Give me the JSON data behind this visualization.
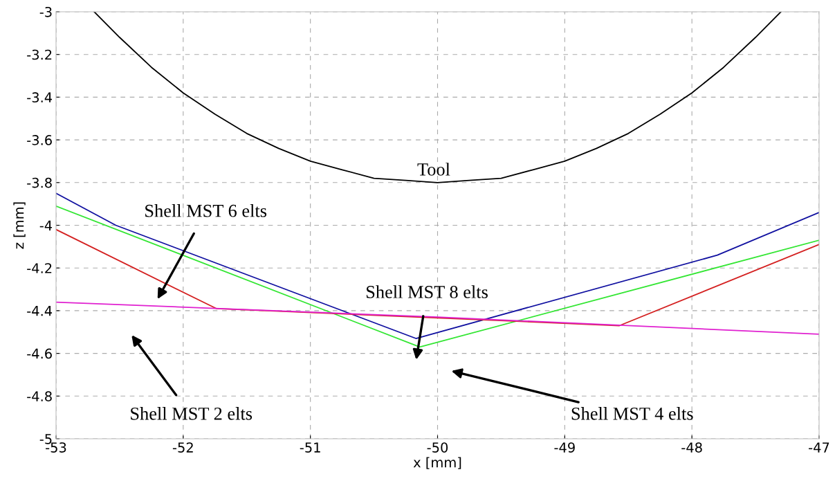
{
  "chart_data": {
    "type": "line",
    "xlabel": "x [mm]",
    "ylabel": "z [mm]",
    "xlim": [
      -53,
      -47
    ],
    "xticks": [
      -53,
      -52,
      -51,
      -50,
      -49,
      -48,
      -47
    ],
    "ylim": [
      -5,
      -3
    ],
    "yticks": [
      -5,
      -4.8,
      -4.6,
      -4.4,
      -4.2,
      -4,
      -3.8,
      -3.6,
      -3.4,
      -3.2,
      -3
    ],
    "grid": true,
    "marker": "none",
    "line_style": "solid",
    "series": [
      {
        "color": "#000000",
        "x": [
          -52.7,
          -52.5,
          -52.25,
          -52,
          -51.75,
          -51.5,
          -51.25,
          -51,
          -50.75,
          -50.5,
          -50.25,
          -50,
          -49.75,
          -49.5,
          -49.25,
          -49,
          -48.75,
          -48.5,
          -48.25,
          -48,
          -47.75,
          -47.5,
          -47.3
        ],
        "values": [
          -3.0,
          -3.12,
          -3.26,
          -3.38,
          -3.48,
          -3.57,
          -3.64,
          -3.7,
          -3.74,
          -3.78,
          -3.79,
          -3.8,
          -3.79,
          -3.78,
          -3.74,
          -3.7,
          -3.64,
          -3.57,
          -3.48,
          -3.38,
          -3.26,
          -3.12,
          -3.0
        ]
      },
      {
        "color": "#1010a0",
        "x": [
          -53,
          -52.53,
          -50.17,
          -47.8,
          -47
        ],
        "values": [
          -3.85,
          -4.0,
          -4.53,
          -4.14,
          -3.94
        ]
      },
      {
        "color": "#33e633",
        "x": [
          -53,
          -50.14,
          -47
        ],
        "values": [
          -3.91,
          -4.57,
          -4.07
        ]
      },
      {
        "color": "#d42020",
        "x": [
          -53,
          -51.74,
          -48.57,
          -47
        ],
        "values": [
          -4.02,
          -4.39,
          -4.47,
          -4.09
        ]
      },
      {
        "color": "#e020d0",
        "x": [
          -53,
          -50,
          -47
        ],
        "values": [
          -4.36,
          -4.43,
          -4.51
        ]
      }
    ],
    "annotations": [
      "Tool",
      "Shell MST 6 elts",
      "Shell MST 8 elts",
      "Shell MST 2 elts",
      "Shell MST 4 elts"
    ]
  }
}
